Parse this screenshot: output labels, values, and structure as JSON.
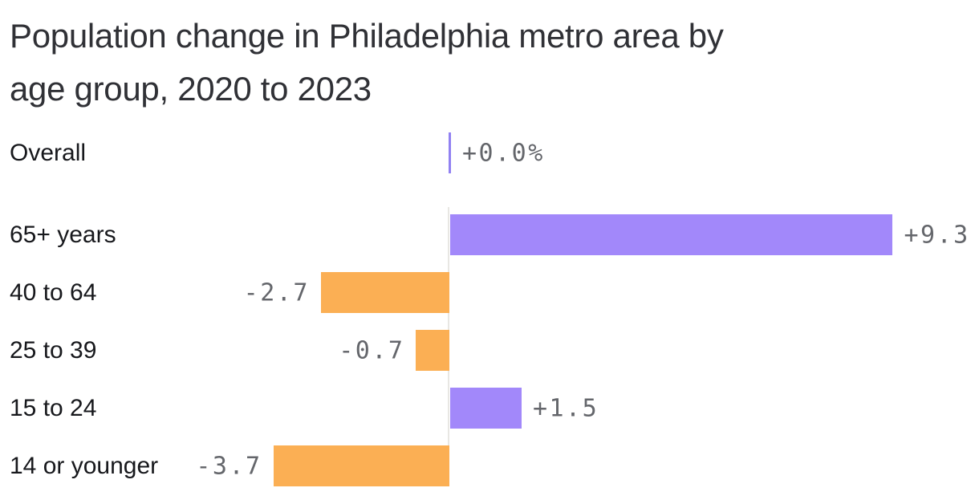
{
  "chart_data": {
    "type": "bar",
    "orientation": "horizontal",
    "title": "Population change in Philadelphia metro area by age group, 2020 to 2023",
    "unit": "%",
    "categories": [
      "Overall",
      "65+ years",
      "40 to 64",
      "25 to 39",
      "15 to 24",
      "14 or younger"
    ],
    "values": [
      0,
      9.3,
      -2.7,
      -0.7,
      1.5,
      -3.7
    ],
    "value_labels": [
      "+0.0%",
      "+9.3",
      "-2.7",
      "-0.7",
      "+1.5",
      "-3.7"
    ],
    "xlim": [
      -3.7,
      9.3
    ],
    "grid": "none",
    "legend": "none",
    "zero_axis_line": true,
    "colors": {
      "positive_bar": "#a288fa",
      "negative_bar": "#fbaf54",
      "zero_tick": "#9181f2",
      "baseline_line": "#e8e7e3",
      "title_text": "#303136",
      "category_text": "#17181c",
      "value_text": "#64666b",
      "background": "#ffffff"
    }
  }
}
